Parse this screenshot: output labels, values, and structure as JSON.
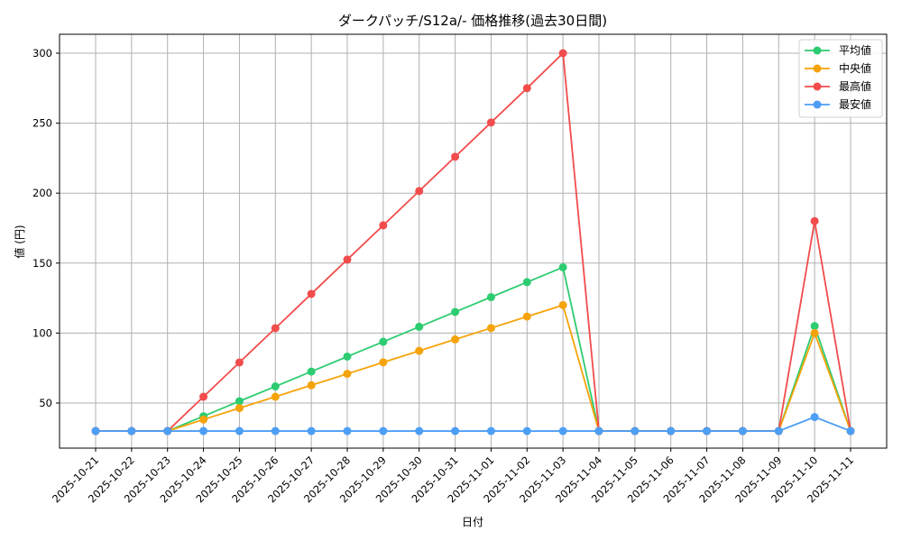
{
  "chart_data": {
    "type": "line",
    "title": "ダークパッチ/S12a/- 価格推移(過去30日間)",
    "xlabel": "日付",
    "ylabel": "値 (円)",
    "ylim": [
      15,
      313
    ],
    "yticks": [
      50,
      100,
      150,
      200,
      250,
      300
    ],
    "grid": true,
    "legend_position": "upper right",
    "x": [
      "2025-10-21",
      "2025-10-22",
      "2025-10-23",
      "2025-10-24",
      "2025-10-25",
      "2025-10-26",
      "2025-10-27",
      "2025-10-28",
      "2025-10-29",
      "2025-10-30",
      "2025-10-31",
      "2025-11-01",
      "2025-11-02",
      "2025-11-03",
      "2025-11-04",
      "2025-11-05",
      "2025-11-06",
      "2025-11-07",
      "2025-11-08",
      "2025-11-09",
      "2025-11-10",
      "2025-11-11"
    ],
    "series": [
      {
        "name": "平均値",
        "color": "#2ecc71",
        "values": [
          30,
          30,
          30,
          40.6,
          51.3,
          61.9,
          72.5,
          83.2,
          93.8,
          104.5,
          115.1,
          125.7,
          136.4,
          147,
          30,
          30,
          30,
          30,
          30,
          30,
          105,
          30
        ]
      },
      {
        "name": "中央値",
        "color": "#f5a30a",
        "values": [
          30,
          30,
          30,
          38.2,
          46.4,
          54.5,
          62.7,
          70.9,
          79.1,
          87.3,
          95.5,
          103.6,
          111.8,
          120,
          30,
          30,
          30,
          30,
          30,
          30,
          100,
          30
        ]
      },
      {
        "name": "最高値",
        "color": "#f24c4c",
        "values": [
          30,
          30,
          30,
          54.5,
          79,
          103.5,
          128,
          152.5,
          177,
          201.5,
          226,
          250.5,
          275,
          300,
          30,
          30,
          30,
          30,
          30,
          30,
          180,
          30
        ]
      },
      {
        "name": "最安値",
        "color": "#4d9ef5",
        "values": [
          30,
          30,
          30,
          30,
          30,
          30,
          30,
          30,
          30,
          30,
          30,
          30,
          30,
          30,
          30,
          30,
          30,
          30,
          30,
          30,
          40,
          30
        ]
      }
    ]
  }
}
